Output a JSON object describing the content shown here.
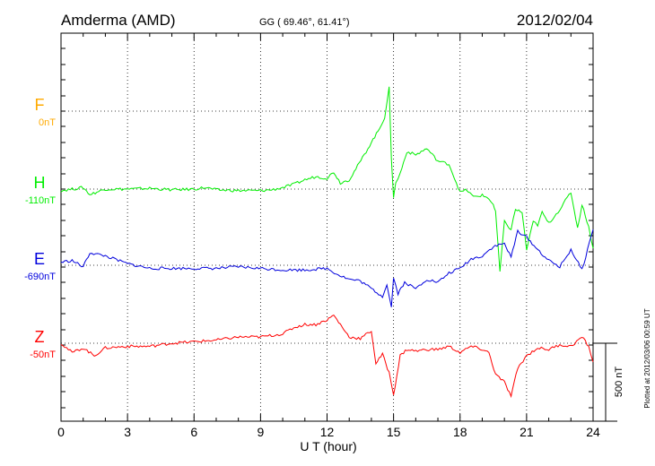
{
  "header": {
    "station": "Amderma (AMD)",
    "coords": "GG ( 69.46°,  61.41°)",
    "date": "2012/02/04"
  },
  "footer": {
    "plotted": "Plotted at 2012/03/06 00:59 UT"
  },
  "chart_data": {
    "type": "line",
    "xlabel": "U T (hour)",
    "xlim": [
      0,
      24
    ],
    "xticks": [
      "0",
      "3",
      "6",
      "9",
      "12",
      "15",
      "18",
      "21",
      "24"
    ],
    "scale_bar": {
      "label": "500 nT",
      "value_nT": 500
    },
    "series": [
      {
        "name": "F",
        "baseline_label": "0nT",
        "color": "#ffaa00",
        "x": [],
        "y": []
      },
      {
        "name": "H",
        "baseline_label": "-110nT",
        "color": "#00ee00",
        "x": [
          0,
          0.5,
          1,
          1.3,
          1.7,
          2,
          3,
          4,
          5,
          6,
          6.5,
          7,
          8,
          9,
          9.5,
          10,
          10.5,
          11,
          11.5,
          12,
          12.3,
          12.6,
          13,
          13.3,
          13.6,
          14,
          14.3,
          14.6,
          14.8,
          14.9,
          15.0,
          15.1,
          15.3,
          15.6,
          16,
          16.5,
          17,
          17.5,
          18,
          18.3,
          18.6,
          19,
          19.3,
          19.5,
          19.6,
          19.8,
          20,
          20.3,
          20.5,
          20.8,
          21,
          21.3,
          21.5,
          21.7,
          22,
          22.5,
          23,
          23.3,
          23.5,
          23.8,
          24
        ],
        "y": [
          -10,
          0,
          10,
          -35,
          -15,
          0,
          0,
          5,
          -5,
          0,
          10,
          -5,
          -10,
          -10,
          -5,
          10,
          30,
          60,
          80,
          70,
          110,
          40,
          60,
          130,
          200,
          300,
          370,
          460,
          650,
          200,
          -50,
          40,
          100,
          240,
          220,
          260,
          180,
          160,
          -20,
          -5,
          -50,
          -40,
          -60,
          -100,
          -150,
          -530,
          -210,
          -260,
          -130,
          -150,
          -390,
          -210,
          -230,
          -150,
          -220,
          -130,
          -20,
          -250,
          -100,
          -240,
          -380
        ]
      },
      {
        "name": "E",
        "baseline_label": "-690nT",
        "color": "#0000dd",
        "x": [
          0,
          0.5,
          1,
          1.3,
          2,
          3,
          4,
          5,
          6,
          7,
          8,
          9,
          10,
          11,
          12,
          12.5,
          13,
          13.5,
          14,
          14.5,
          14.7,
          14.9,
          15.0,
          15.2,
          15.5,
          16,
          16.5,
          17,
          17.5,
          18,
          18.5,
          19,
          19.5,
          20,
          20.3,
          20.6,
          21,
          21.5,
          22,
          22.5,
          23,
          23.5,
          24
        ],
        "y": [
          20,
          30,
          -10,
          80,
          60,
          10,
          -20,
          -20,
          -20,
          -20,
          -10,
          -20,
          -30,
          -30,
          -20,
          -60,
          -90,
          -100,
          -150,
          -200,
          -120,
          -270,
          -80,
          -180,
          -110,
          -150,
          -90,
          -110,
          -50,
          -20,
          40,
          60,
          120,
          140,
          50,
          220,
          180,
          100,
          30,
          -10,
          100,
          -30,
          230
        ]
      },
      {
        "name": "Z",
        "baseline_label": "-50nT",
        "color": "#ff0000",
        "x": [
          0,
          0.5,
          1,
          1.5,
          2,
          3,
          4,
          5,
          6,
          7,
          8,
          9,
          10,
          10.5,
          11,
          11.5,
          12,
          12.3,
          12.6,
          13,
          13.5,
          14,
          14.2,
          14.5,
          14.8,
          15.0,
          15.3,
          15.6,
          16,
          16.5,
          17,
          17.5,
          18,
          18.5,
          19,
          19.3,
          19.6,
          20,
          20.3,
          20.6,
          21,
          21.5,
          22,
          22.5,
          23,
          23.5,
          23.8,
          24
        ],
        "y": [
          0,
          -60,
          -30,
          -80,
          -30,
          -20,
          -20,
          0,
          10,
          20,
          40,
          40,
          60,
          100,
          120,
          120,
          150,
          180,
          120,
          40,
          30,
          80,
          -130,
          -70,
          -190,
          -330,
          -80,
          -40,
          -50,
          -40,
          -40,
          -20,
          -60,
          -20,
          -40,
          -60,
          -200,
          -250,
          -340,
          -160,
          -80,
          -30,
          -40,
          -10,
          -20,
          40,
          -20,
          -120
        ]
      }
    ]
  }
}
